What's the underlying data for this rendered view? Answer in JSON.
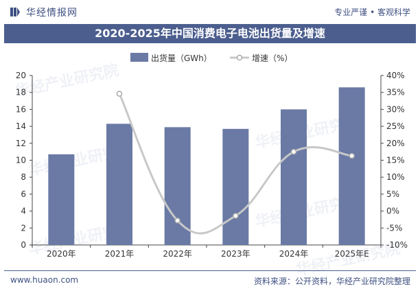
{
  "header": {
    "brand_name": "华经情报网",
    "slogan": "专业严谨 • 客观科学"
  },
  "title": "2020-2025年中国消费电子电池出货量及增速",
  "footer": {
    "url": "www.huaon.com",
    "source": "资料来源：公开资料，华经产业研究院整理"
  },
  "watermark": "华经产业研究院",
  "colors": {
    "bar": "#6a7aa5",
    "line": "#c8c8c8",
    "title_bg": "#4b5e8e",
    "brand": "#3d4f80"
  },
  "chart_data": {
    "type": "bar",
    "categories": [
      "2020年",
      "2021年",
      "2022年",
      "2023年",
      "2024年",
      "2025年E"
    ],
    "series": [
      {
        "name": "出货量（GWh）",
        "type": "bar",
        "axis": "left",
        "values": [
          10.7,
          14.3,
          13.9,
          13.7,
          16.0,
          18.6
        ]
      },
      {
        "name": "增速（%）",
        "type": "line",
        "axis": "right",
        "values": [
          null,
          34.6,
          -2.8,
          -1.4,
          17.5,
          16.3
        ]
      }
    ],
    "y_left": {
      "min": 0,
      "max": 20,
      "step": 2,
      "ticks": [
        "0",
        "2",
        "4",
        "6",
        "8",
        "10",
        "12",
        "14",
        "16",
        "18",
        "20"
      ]
    },
    "y_right": {
      "min": -10,
      "max": 40,
      "step": 5,
      "ticks": [
        "-10%",
        "-5%",
        "0%",
        "5%",
        "10%",
        "15%",
        "20%",
        "25%",
        "30%",
        "35%",
        "40%"
      ]
    },
    "legend_position": "top-center",
    "grid": false
  }
}
